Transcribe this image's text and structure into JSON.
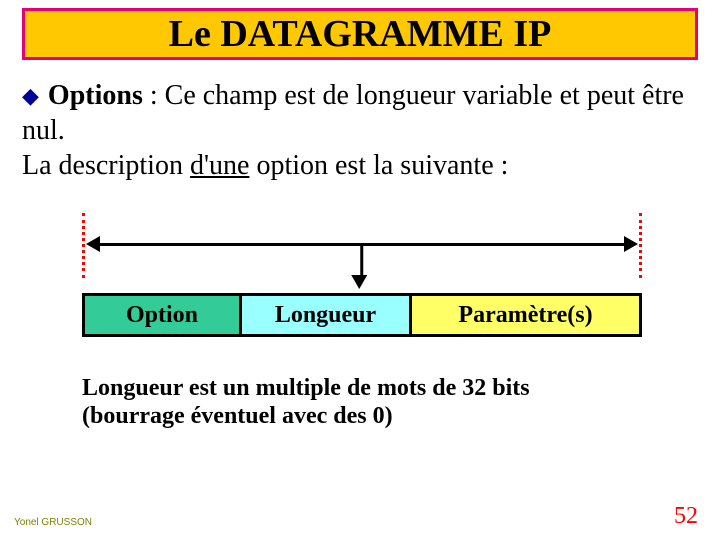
{
  "colors": {
    "title_bg": "#ffc800",
    "title_border": "#e60073",
    "title_text": "#000000",
    "bullet_color": "#000099",
    "dash_color": "#ff0000",
    "field1_bg": "#33cc99",
    "field2_bg": "#99ffff",
    "field3_bg": "#ffff66",
    "page_num_color": "#ff0000",
    "footer_left_color": "#808000"
  },
  "title": "Le DATAGRAMME IP",
  "body": {
    "bullet_glyph": "◆",
    "options_label": "Options",
    "line1_rest": " : Ce champ est de longueur variable et peut être nul.",
    "line2_pre": "La description ",
    "line2_underlined": "d'une",
    "line2_post": " option est la suivante :"
  },
  "fields": {
    "f1": "Option",
    "f2": "Longueur",
    "f3": "Paramètre(s)"
  },
  "caption": {
    "l1": "Longueur est un multiple de mots de 32 bits",
    "l2": "(bourrage éventuel avec des 0)"
  },
  "footer": {
    "left": "Yonel GRUSSON",
    "page": "52"
  }
}
